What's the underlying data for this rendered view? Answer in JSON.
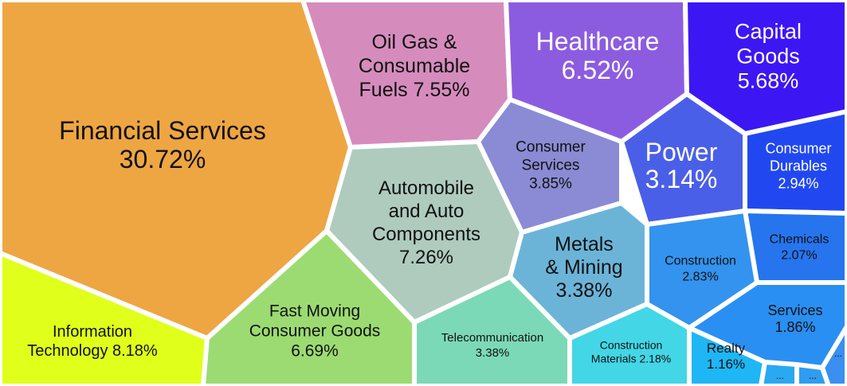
{
  "chart_data": {
    "type": "voronoi-treemap",
    "title": "",
    "sectors": [
      {
        "name": "Financial Services",
        "value": 30.72,
        "label": [
          "Financial Services",
          "30.72%"
        ],
        "color": "#eea643"
      },
      {
        "name": "Oil Gas & Consumable Fuels",
        "value": 7.55,
        "label": [
          "Oil Gas &",
          "Consumable",
          "Fuels 7.55%"
        ],
        "color": "#d58cbd"
      },
      {
        "name": "Healthcare",
        "value": 6.52,
        "label": [
          "Healthcare",
          "6.52%"
        ],
        "color": "#8c5ce0"
      },
      {
        "name": "Capital Goods",
        "value": 5.68,
        "label": [
          "Capital",
          "Goods",
          "5.68%"
        ],
        "color": "#3c17f3"
      },
      {
        "name": "Consumer Services",
        "value": 3.85,
        "label": [
          "Consumer",
          "Services",
          "3.85%"
        ],
        "color": "#8a8bd4"
      },
      {
        "name": "Power",
        "value": 3.14,
        "label": [
          "Power",
          "3.14%"
        ],
        "color": "#4a5fe8"
      },
      {
        "name": "Consumer Durables",
        "value": 2.94,
        "label": [
          "Consumer",
          "Durables",
          "2.94%"
        ],
        "color": "#2148f0"
      },
      {
        "name": "Automobile and Auto Components",
        "value": 7.26,
        "label": [
          "Automobile",
          "and Auto",
          "Components",
          "7.26%"
        ],
        "color": "#aecbbe"
      },
      {
        "name": "Metals & Mining",
        "value": 3.38,
        "label": [
          "Metals",
          "& Mining",
          "3.38%"
        ],
        "color": "#6bb4d8"
      },
      {
        "name": "Chemicals",
        "value": 2.07,
        "label": [
          "Chemicals",
          "2.07%"
        ],
        "color": "#2675ef"
      },
      {
        "name": "Construction",
        "value": 2.83,
        "label": [
          "Construction",
          "2.83%"
        ],
        "color": "#3393ee"
      },
      {
        "name": "Services",
        "value": 1.86,
        "label": [
          "Services",
          "1.86%"
        ],
        "color": "#2a8ff2"
      },
      {
        "name": "Information Technology",
        "value": 8.18,
        "label": [
          "Information",
          "Technology 8.18%"
        ],
        "color": "#e0ff1a"
      },
      {
        "name": "Fast Moving Consumer Goods",
        "value": 6.69,
        "label": [
          "Fast Moving",
          "Consumer Goods",
          "6.69%"
        ],
        "color": "#9cdb72"
      },
      {
        "name": "Telecommunication",
        "value": 3.38,
        "label": [
          "Telecommunication",
          "3.38%"
        ],
        "color": "#7bd9b8"
      },
      {
        "name": "Construction Materials",
        "value": 2.18,
        "label": [
          "Construction",
          "Materials 2.18%"
        ],
        "color": "#43d6e6"
      },
      {
        "name": "Realty",
        "value": 1.16,
        "label": [
          "Realty",
          "1.16%"
        ],
        "color": "#1fb6f5"
      },
      {
        "name": "",
        "value": null,
        "label": [
          "..."
        ],
        "color": "#29a9f0"
      },
      {
        "name": "",
        "value": null,
        "label": [
          "..."
        ],
        "color": "#2f9cf0"
      },
      {
        "name": "",
        "value": null,
        "label": [
          "..."
        ],
        "color": "#3a8ff0"
      }
    ]
  }
}
